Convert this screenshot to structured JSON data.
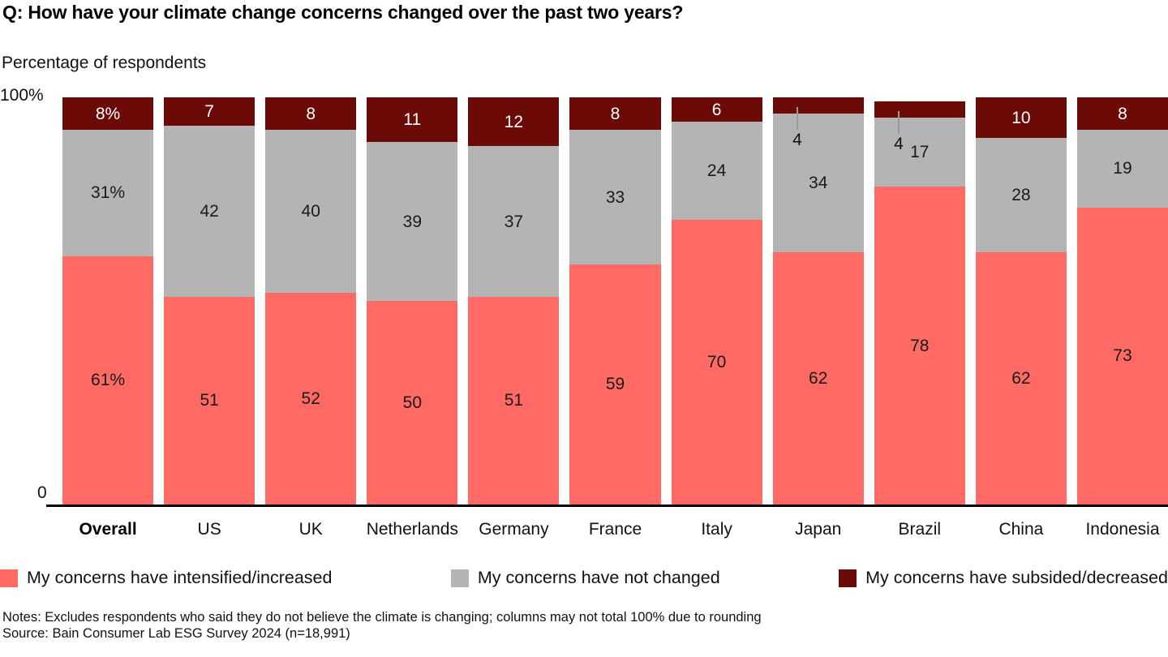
{
  "page": {
    "title": "Q: How have your climate change concerns changed over the past two years?",
    "subtitle": "Percentage of respondents",
    "notes": "Notes: Excludes respondents who said they do not believe the climate is changing; columns may not total 100% due to rounding",
    "source": "Source: Bain Consumer Lab ESG Survey 2024 (n=18,991)"
  },
  "chart_data": {
    "type": "bar",
    "stacked": true,
    "title": "Q: How have your climate change concerns changed over the past two years?",
    "ylabel": "Percentage of respondents",
    "ylim": [
      0,
      100
    ],
    "axis": {
      "top_tick": "100%",
      "bottom_tick": "0"
    },
    "legend_position": "bottom",
    "grid": false,
    "categories": [
      "Overall",
      "US",
      "UK",
      "Netherlands",
      "Germany",
      "France",
      "Italy",
      "Japan",
      "Brazil",
      "China",
      "Indonesia"
    ],
    "bold_category_index": 0,
    "series": [
      {
        "name": "My concerns have intensified/increased",
        "color": "#ff6a64",
        "label_color": "#1a1a1a",
        "values": [
          61,
          51,
          52,
          50,
          51,
          59,
          70,
          62,
          78,
          62,
          73
        ],
        "labels": [
          "61%",
          "51",
          "52",
          "50",
          "51",
          "59",
          "70",
          "62",
          "78",
          "62",
          "73"
        ]
      },
      {
        "name": "My concerns have not changed",
        "color": "#b4b4b4",
        "label_color": "#1a1a1a",
        "values": [
          31,
          42,
          40,
          39,
          37,
          33,
          24,
          34,
          17,
          28,
          19
        ],
        "labels": [
          "31%",
          "42",
          "40",
          "39",
          "37",
          "33",
          "24",
          "34",
          "17",
          "28",
          "19"
        ]
      },
      {
        "name": "My concerns have subsided/decreased",
        "color": "#6c0a08",
        "label_color": "#ffffff",
        "values": [
          8,
          7,
          8,
          11,
          12,
          8,
          6,
          4,
          4,
          10,
          8
        ],
        "labels": [
          "8%",
          "7",
          "8",
          "11",
          "12",
          "8",
          "6",
          "4",
          "4",
          "10",
          "8"
        ]
      }
    ]
  },
  "colors": {
    "increased": "#ff6a64",
    "unchanged": "#b4b4b4",
    "decreased": "#6c0a08",
    "axis": "#000000",
    "leader_line": "#9a9a9a"
  }
}
